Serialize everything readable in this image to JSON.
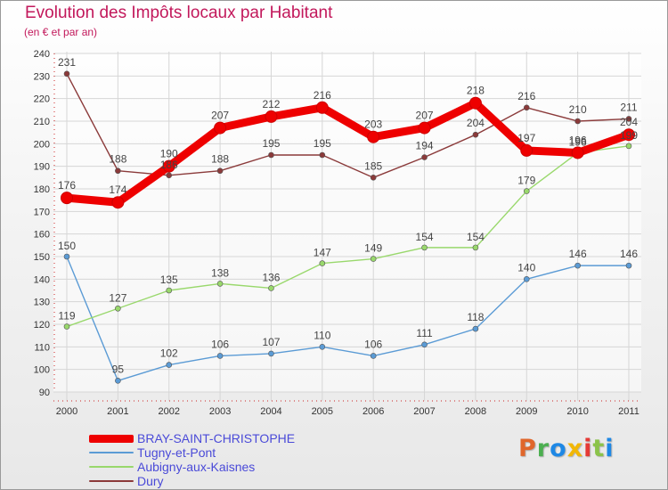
{
  "header": {
    "title": "Evolution des Impôts locaux par Habitant",
    "subtitle": "(en € et par an)"
  },
  "logo": {
    "text": "Proxiti",
    "colors": [
      "#e0662b",
      "#4caf50",
      "#1e88e5",
      "#f2b705",
      "#e53935",
      "#8bc34a",
      "#1e88e5"
    ]
  },
  "chart_data": {
    "type": "line",
    "title": "Evolution des Impôts locaux par Habitant",
    "subtitle": "(en € et par an)",
    "x": [
      "2000",
      "2001",
      "2002",
      "2003",
      "2004",
      "2005",
      "2006",
      "2007",
      "2008",
      "2009",
      "2010",
      "2011"
    ],
    "ylim": [
      90,
      240
    ],
    "yticks": [
      90,
      100,
      110,
      120,
      130,
      140,
      150,
      160,
      170,
      180,
      190,
      200,
      210,
      220,
      230,
      240
    ],
    "grid": true,
    "legend_position": "bottom-left",
    "series": [
      {
        "name": "BRAY-SAINT-CHRISTOPHE",
        "color": "#ee0000",
        "values": [
          176,
          174,
          190,
          207,
          212,
          216,
          203,
          207,
          218,
          197,
          196,
          204
        ]
      },
      {
        "name": "Tugny-et-Pont",
        "color": "#5b9bd5",
        "values": [
          150,
          95,
          102,
          106,
          107,
          110,
          106,
          111,
          118,
          140,
          146,
          146
        ]
      },
      {
        "name": "Aubigny-aux-Kaisnes",
        "color": "#99d86c",
        "values": [
          119,
          127,
          135,
          138,
          136,
          147,
          149,
          154,
          154,
          179,
          196,
          199
        ]
      },
      {
        "name": "Dury",
        "color": "#8b3a3a",
        "values": [
          231,
          188,
          186,
          188,
          195,
          195,
          185,
          194,
          204,
          216,
          210,
          211
        ]
      }
    ]
  }
}
